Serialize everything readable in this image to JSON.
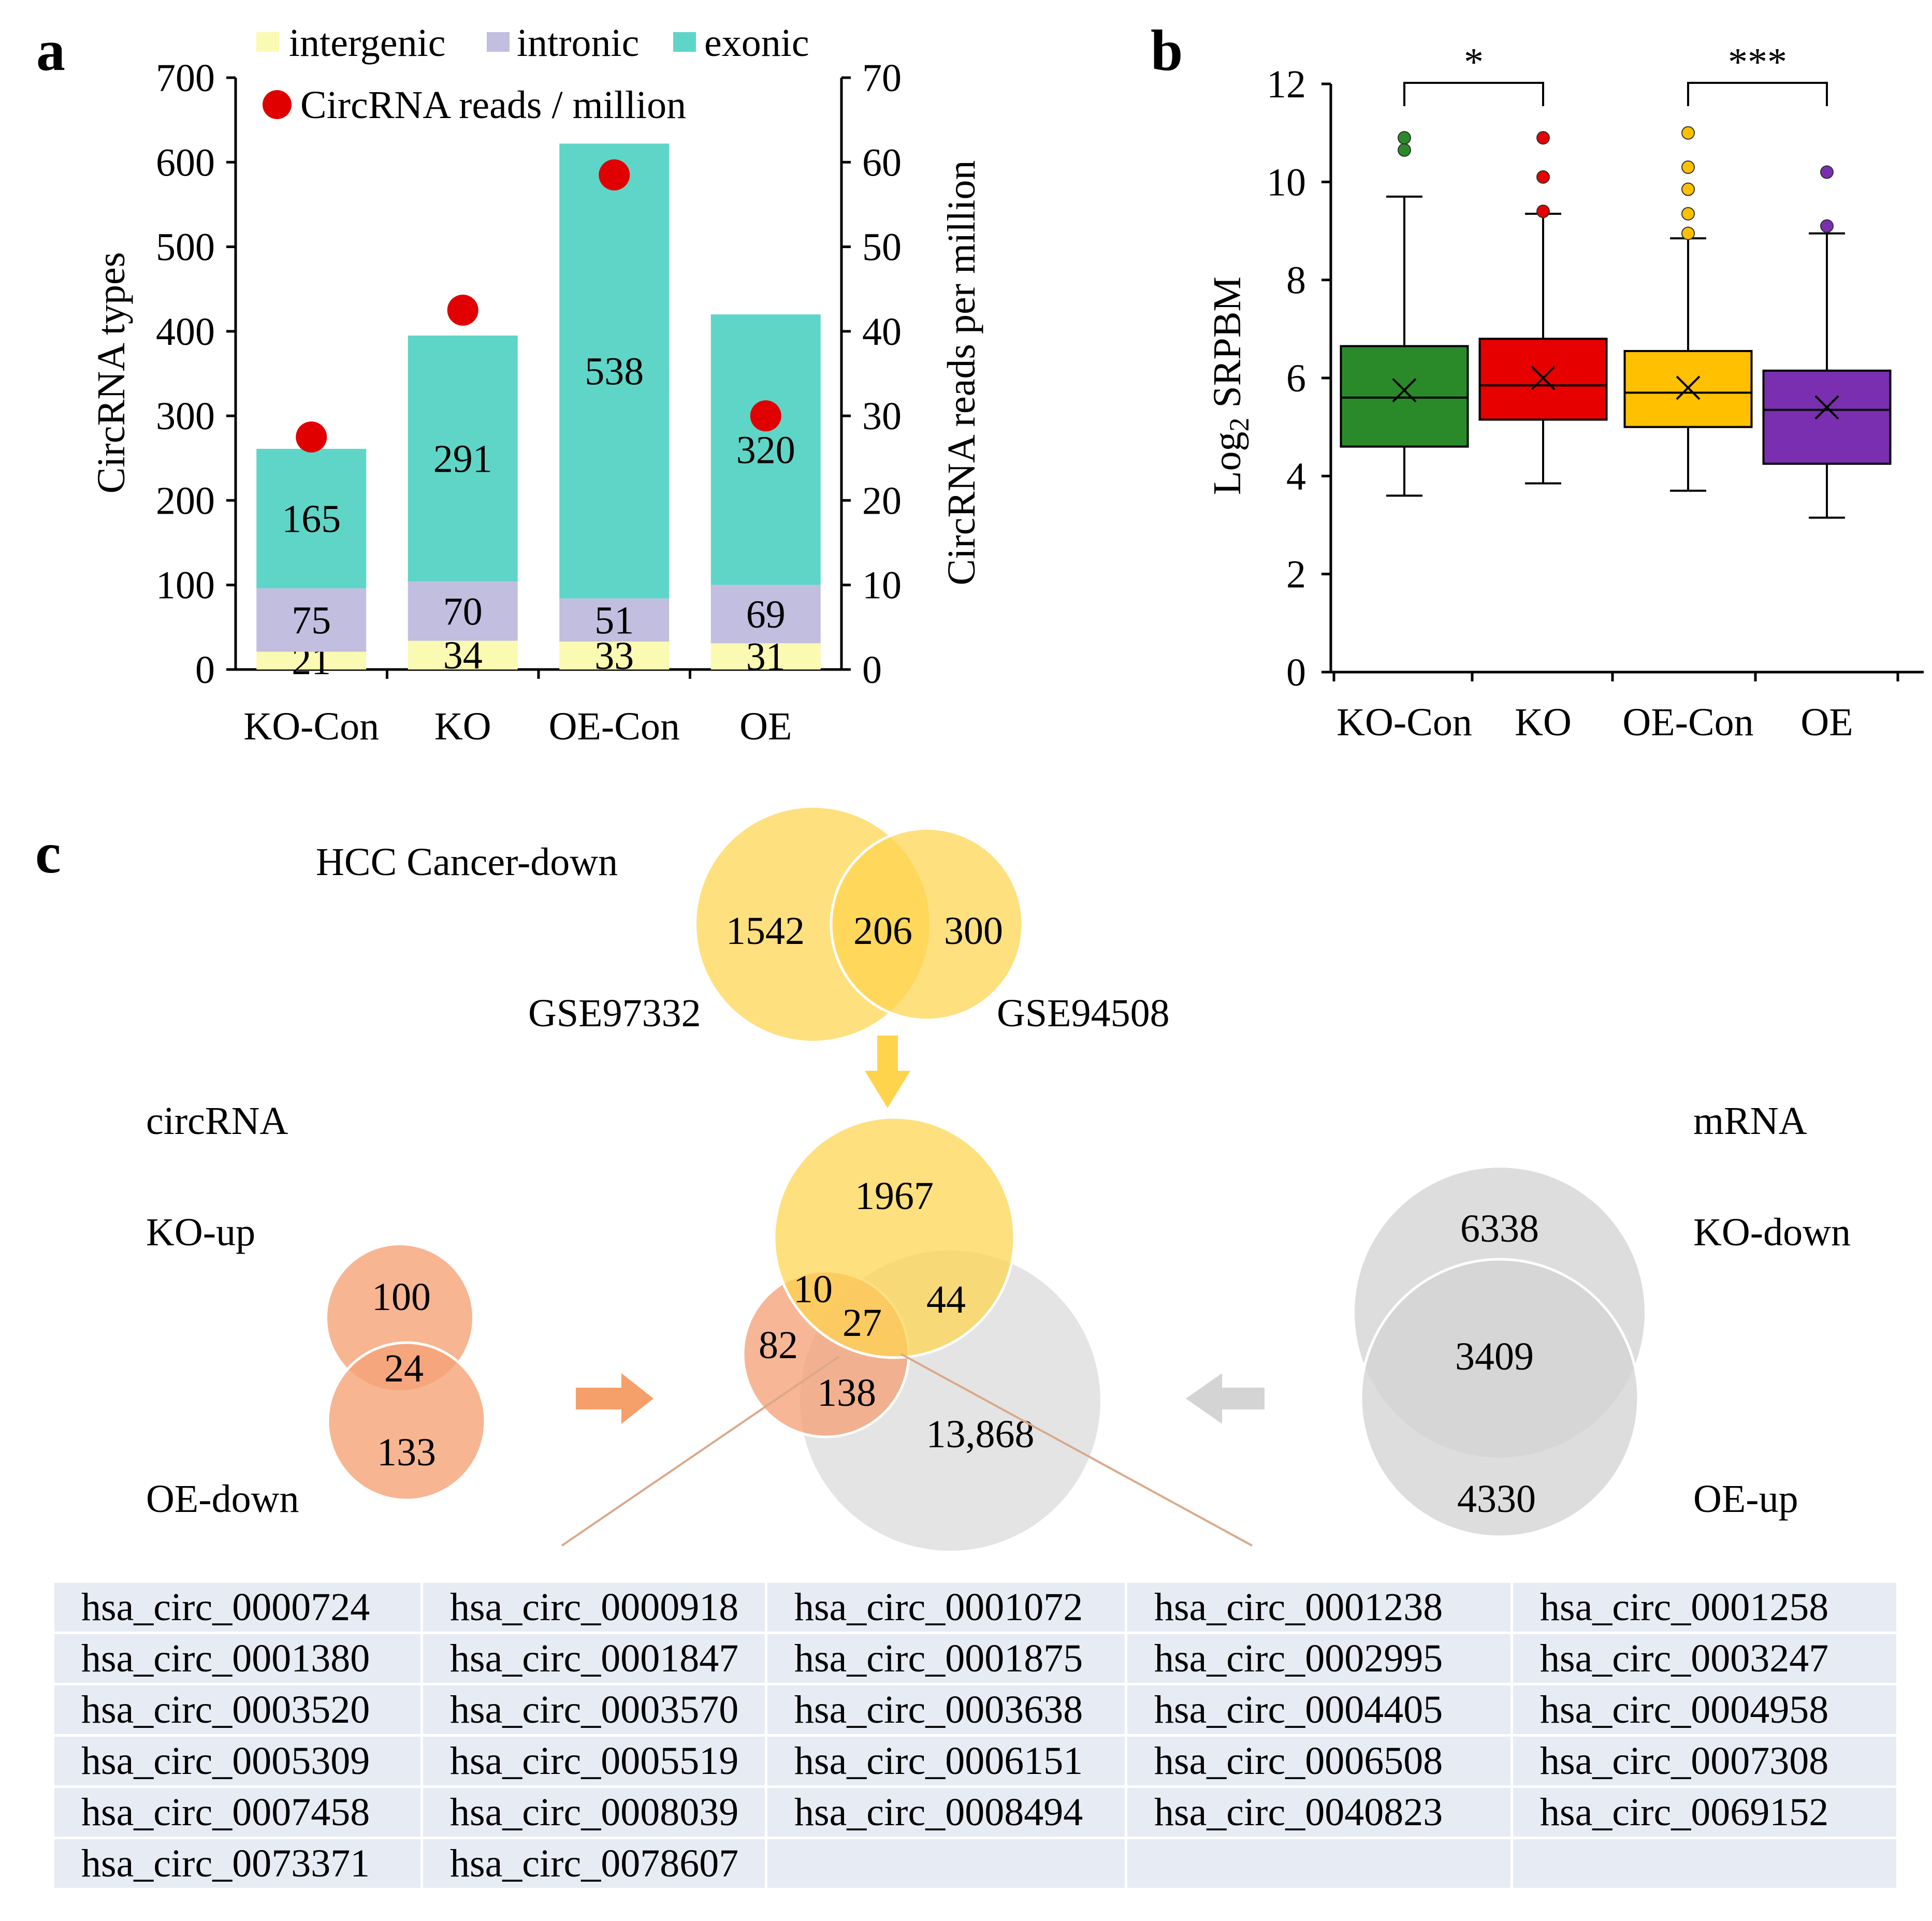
{
  "panels": {
    "a": "a",
    "b": "b",
    "c": "c"
  },
  "panel_a": {
    "legend": {
      "intergenic": "intergenic",
      "intronic": "intronic",
      "exonic": "exonic",
      "reads": "CircRNA reads / million"
    },
    "colors": {
      "intergenic": "#fafab2",
      "intronic": "#c2bedf",
      "exonic": "#5fd5c7",
      "reads": "#e00000"
    }
  },
  "panel_b": {
    "colors": {
      "box_fills": [
        "#2a8a2a",
        "#e60000",
        "#ffc000",
        "#7a2fb0"
      ],
      "outliers": [
        "#2a8a2a",
        "#e60000",
        "#ffc000",
        "#7a2fb0"
      ]
    }
  },
  "chart_data": [
    {
      "type": "bar",
      "stacked": true,
      "categories": [
        "KO-Con",
        "KO",
        "OE-Con",
        "OE"
      ],
      "series": [
        {
          "name": "intergenic",
          "values": [
            21,
            34,
            33,
            31
          ],
          "labels": [
            "21",
            "34",
            "33",
            "31"
          ]
        },
        {
          "name": "intronic",
          "values": [
            75,
            70,
            51,
            69
          ],
          "labels": [
            "75",
            "70",
            "51",
            "69"
          ]
        },
        {
          "name": "exonic",
          "values": [
            165,
            291,
            538,
            320
          ],
          "labels": [
            "165",
            "291",
            "538",
            "320"
          ]
        }
      ],
      "secondary_series": {
        "name": "CircRNA reads / million",
        "type": "scatter",
        "values": [
          27.5,
          42.5,
          58.5,
          30
        ]
      },
      "ylabel": "CircRNA types",
      "y2label": "CircRNA reads per million",
      "ylim": [
        0,
        700
      ],
      "y2lim": [
        0,
        70
      ],
      "yticks": [
        "0",
        "100",
        "200",
        "300",
        "400",
        "500",
        "600",
        "700"
      ],
      "y2ticks": [
        "0",
        "10",
        "20",
        "30",
        "40",
        "50",
        "60",
        "70"
      ],
      "legend_position": "top"
    },
    {
      "type": "box",
      "categories": [
        "KO-Con",
        "KO",
        "OE-Con",
        "OE"
      ],
      "ylabel": "Log",
      "ylabel_sub": "2",
      "ylabel_rest": " SRPBM",
      "ylim": [
        0,
        12
      ],
      "yticks": [
        "0",
        "2",
        "4",
        "6",
        "8",
        "10",
        "12"
      ],
      "boxes": [
        {
          "q1": 4.6,
          "median": 5.6,
          "q3": 6.65,
          "whisker_low": 3.6,
          "whisker_high": 9.7,
          "mean": 5.75,
          "outliers": [
            10.65,
            10.9
          ]
        },
        {
          "q1": 5.15,
          "median": 5.85,
          "q3": 6.8,
          "whisker_low": 3.85,
          "whisker_high": 9.35,
          "mean": 6.0,
          "outliers": [
            9.4,
            10.1,
            10.9
          ]
        },
        {
          "q1": 5.0,
          "median": 5.7,
          "q3": 6.55,
          "whisker_low": 3.7,
          "whisker_high": 8.85,
          "mean": 5.8,
          "outliers": [
            8.95,
            9.35,
            9.85,
            10.3,
            11.0
          ]
        },
        {
          "q1": 4.25,
          "median": 5.35,
          "q3": 6.15,
          "whisker_low": 3.15,
          "whisker_high": 8.95,
          "mean": 5.4,
          "outliers": [
            9.1,
            10.2
          ]
        }
      ],
      "significance": [
        {
          "between": [
            "KO-Con",
            "KO"
          ],
          "label": "*"
        },
        {
          "between": [
            "OE-Con",
            "OE"
          ],
          "label": "***"
        }
      ]
    },
    {
      "type": "venn",
      "top_title": "HCC Cancer-down",
      "top_sets": {
        "left_label": "GSE97332",
        "right_label": "GSE94508",
        "left_only": "1542",
        "both": "206",
        "right_only": "300"
      },
      "left_title": "circRNA",
      "left_sets": {
        "top_label": "KO-up",
        "bottom_label": "OE-down",
        "top_only": "100",
        "both": "24",
        "bottom_only": "133"
      },
      "right_title": "mRNA",
      "right_sets": {
        "top_label": "KO-down",
        "bottom_label": "OE-up",
        "top_only": "6338",
        "both": "3409",
        "bottom_only": "4330"
      },
      "center_sets": {
        "yellow_only": "1967",
        "yellow_orange": "10",
        "all_three": "27",
        "yellow_gray": "44",
        "orange_only": "82",
        "orange_gray": "138",
        "gray_only": "13,868"
      }
    }
  ],
  "circ_table": [
    [
      "hsa_circ_0000724",
      "hsa_circ_0000918",
      "hsa_circ_0001072",
      "hsa_circ_0001238",
      "hsa_circ_0001258"
    ],
    [
      "hsa_circ_0001380",
      "hsa_circ_0001847",
      "hsa_circ_0001875",
      "hsa_circ_0002995",
      "hsa_circ_0003247"
    ],
    [
      "hsa_circ_0003520",
      "hsa_circ_0003570",
      "hsa_circ_0003638",
      "hsa_circ_0004405",
      "hsa_circ_0004958"
    ],
    [
      "hsa_circ_0005309",
      "hsa_circ_0005519",
      "hsa_circ_0006151",
      "hsa_circ_0006508",
      "hsa_circ_0007308"
    ],
    [
      "hsa_circ_0007458",
      "hsa_circ_0008039",
      "hsa_circ_0008494",
      "hsa_circ_0040823",
      "hsa_circ_0069152"
    ],
    [
      "hsa_circ_0073371",
      "hsa_circ_0078607",
      "",
      "",
      ""
    ]
  ]
}
